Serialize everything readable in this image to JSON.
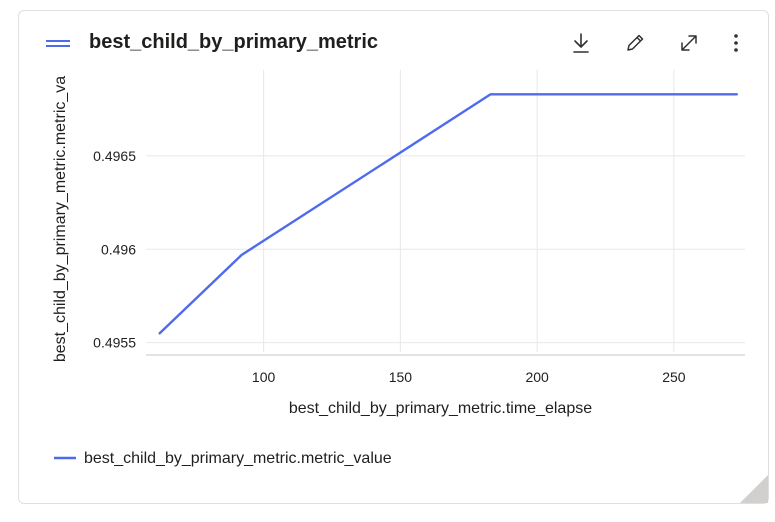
{
  "card": {
    "title": "best_child_by_primary_metric",
    "tools": [
      "download-icon",
      "edit-pencil-icon",
      "expand-icon",
      "more-vertical-icon"
    ]
  },
  "chart_data": {
    "type": "line",
    "title": "best_child_by_primary_metric",
    "xlabel": "best_child_by_primary_metric.time_elapse",
    "ylabel": "best_child_by_primary_metric.metric_va",
    "xlim": [
      57,
      276
    ],
    "ylim": [
      0.49545,
      0.49696
    ],
    "x_ticks": [
      100,
      150,
      200,
      250
    ],
    "y_ticks": [
      0.4955,
      0.496,
      0.4965
    ],
    "y_tick_labels": [
      "0.4955",
      "0.496",
      "0.4965"
    ],
    "grid": true,
    "legend": "bottom-left",
    "series": [
      {
        "name": "best_child_by_primary_metric.metric_value",
        "color": "#4f6bed",
        "x": [
          62,
          92,
          183,
          273
        ],
        "y": [
          0.49555,
          0.49597,
          0.49683,
          0.49683
        ]
      }
    ]
  }
}
